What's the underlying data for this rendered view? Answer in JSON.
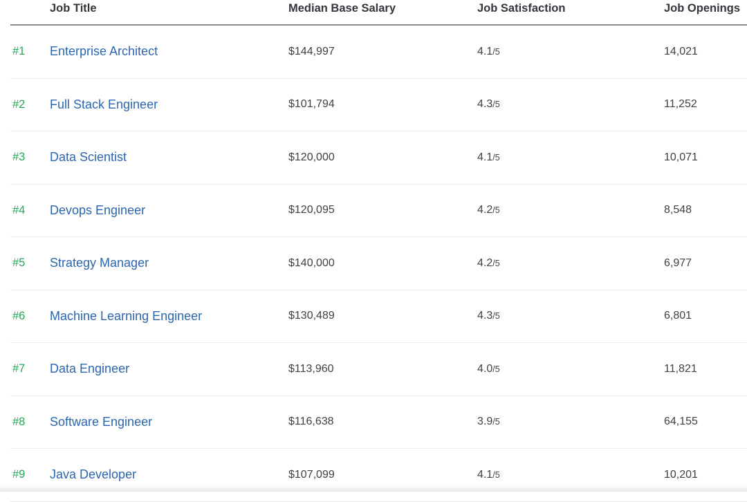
{
  "table": {
    "columns": {
      "rank": "",
      "job_title": "Job Title",
      "median_base_salary": "Median Base Salary",
      "job_satisfaction": "Job Satisfaction",
      "job_openings": "Job Openings"
    },
    "rating_suffix": "/5",
    "rows": [
      {
        "rank": "#1",
        "title": "Enterprise Architect",
        "salary": "$144,997",
        "satisfaction": "4.1",
        "openings": "14,021"
      },
      {
        "rank": "#2",
        "title": "Full Stack Engineer",
        "salary": "$101,794",
        "satisfaction": "4.3",
        "openings": "11,252"
      },
      {
        "rank": "#3",
        "title": "Data Scientist",
        "salary": "$120,000",
        "satisfaction": "4.1",
        "openings": "10,071"
      },
      {
        "rank": "#4",
        "title": "Devops Engineer",
        "salary": "$120,095",
        "satisfaction": "4.2",
        "openings": "8,548"
      },
      {
        "rank": "#5",
        "title": "Strategy Manager",
        "salary": "$140,000",
        "satisfaction": "4.2",
        "openings": "6,977"
      },
      {
        "rank": "#6",
        "title": "Machine Learning Engineer",
        "salary": "$130,489",
        "satisfaction": "4.3",
        "openings": "6,801"
      },
      {
        "rank": "#7",
        "title": "Data Engineer",
        "salary": "$113,960",
        "satisfaction": "4.0",
        "openings": "11,821"
      },
      {
        "rank": "#8",
        "title": "Software Engineer",
        "salary": "$116,638",
        "satisfaction": "3.9",
        "openings": "64,155"
      },
      {
        "rank": "#9",
        "title": "Java Developer",
        "salary": "$107,099",
        "satisfaction": "4.1",
        "openings": "10,201"
      }
    ]
  },
  "colors": {
    "rank_green": "#27a758",
    "link_blue": "#2d66ae",
    "header_text": "#33363a",
    "body_text": "#3d4045",
    "header_border": "#84888d",
    "row_border": "#ececec"
  }
}
